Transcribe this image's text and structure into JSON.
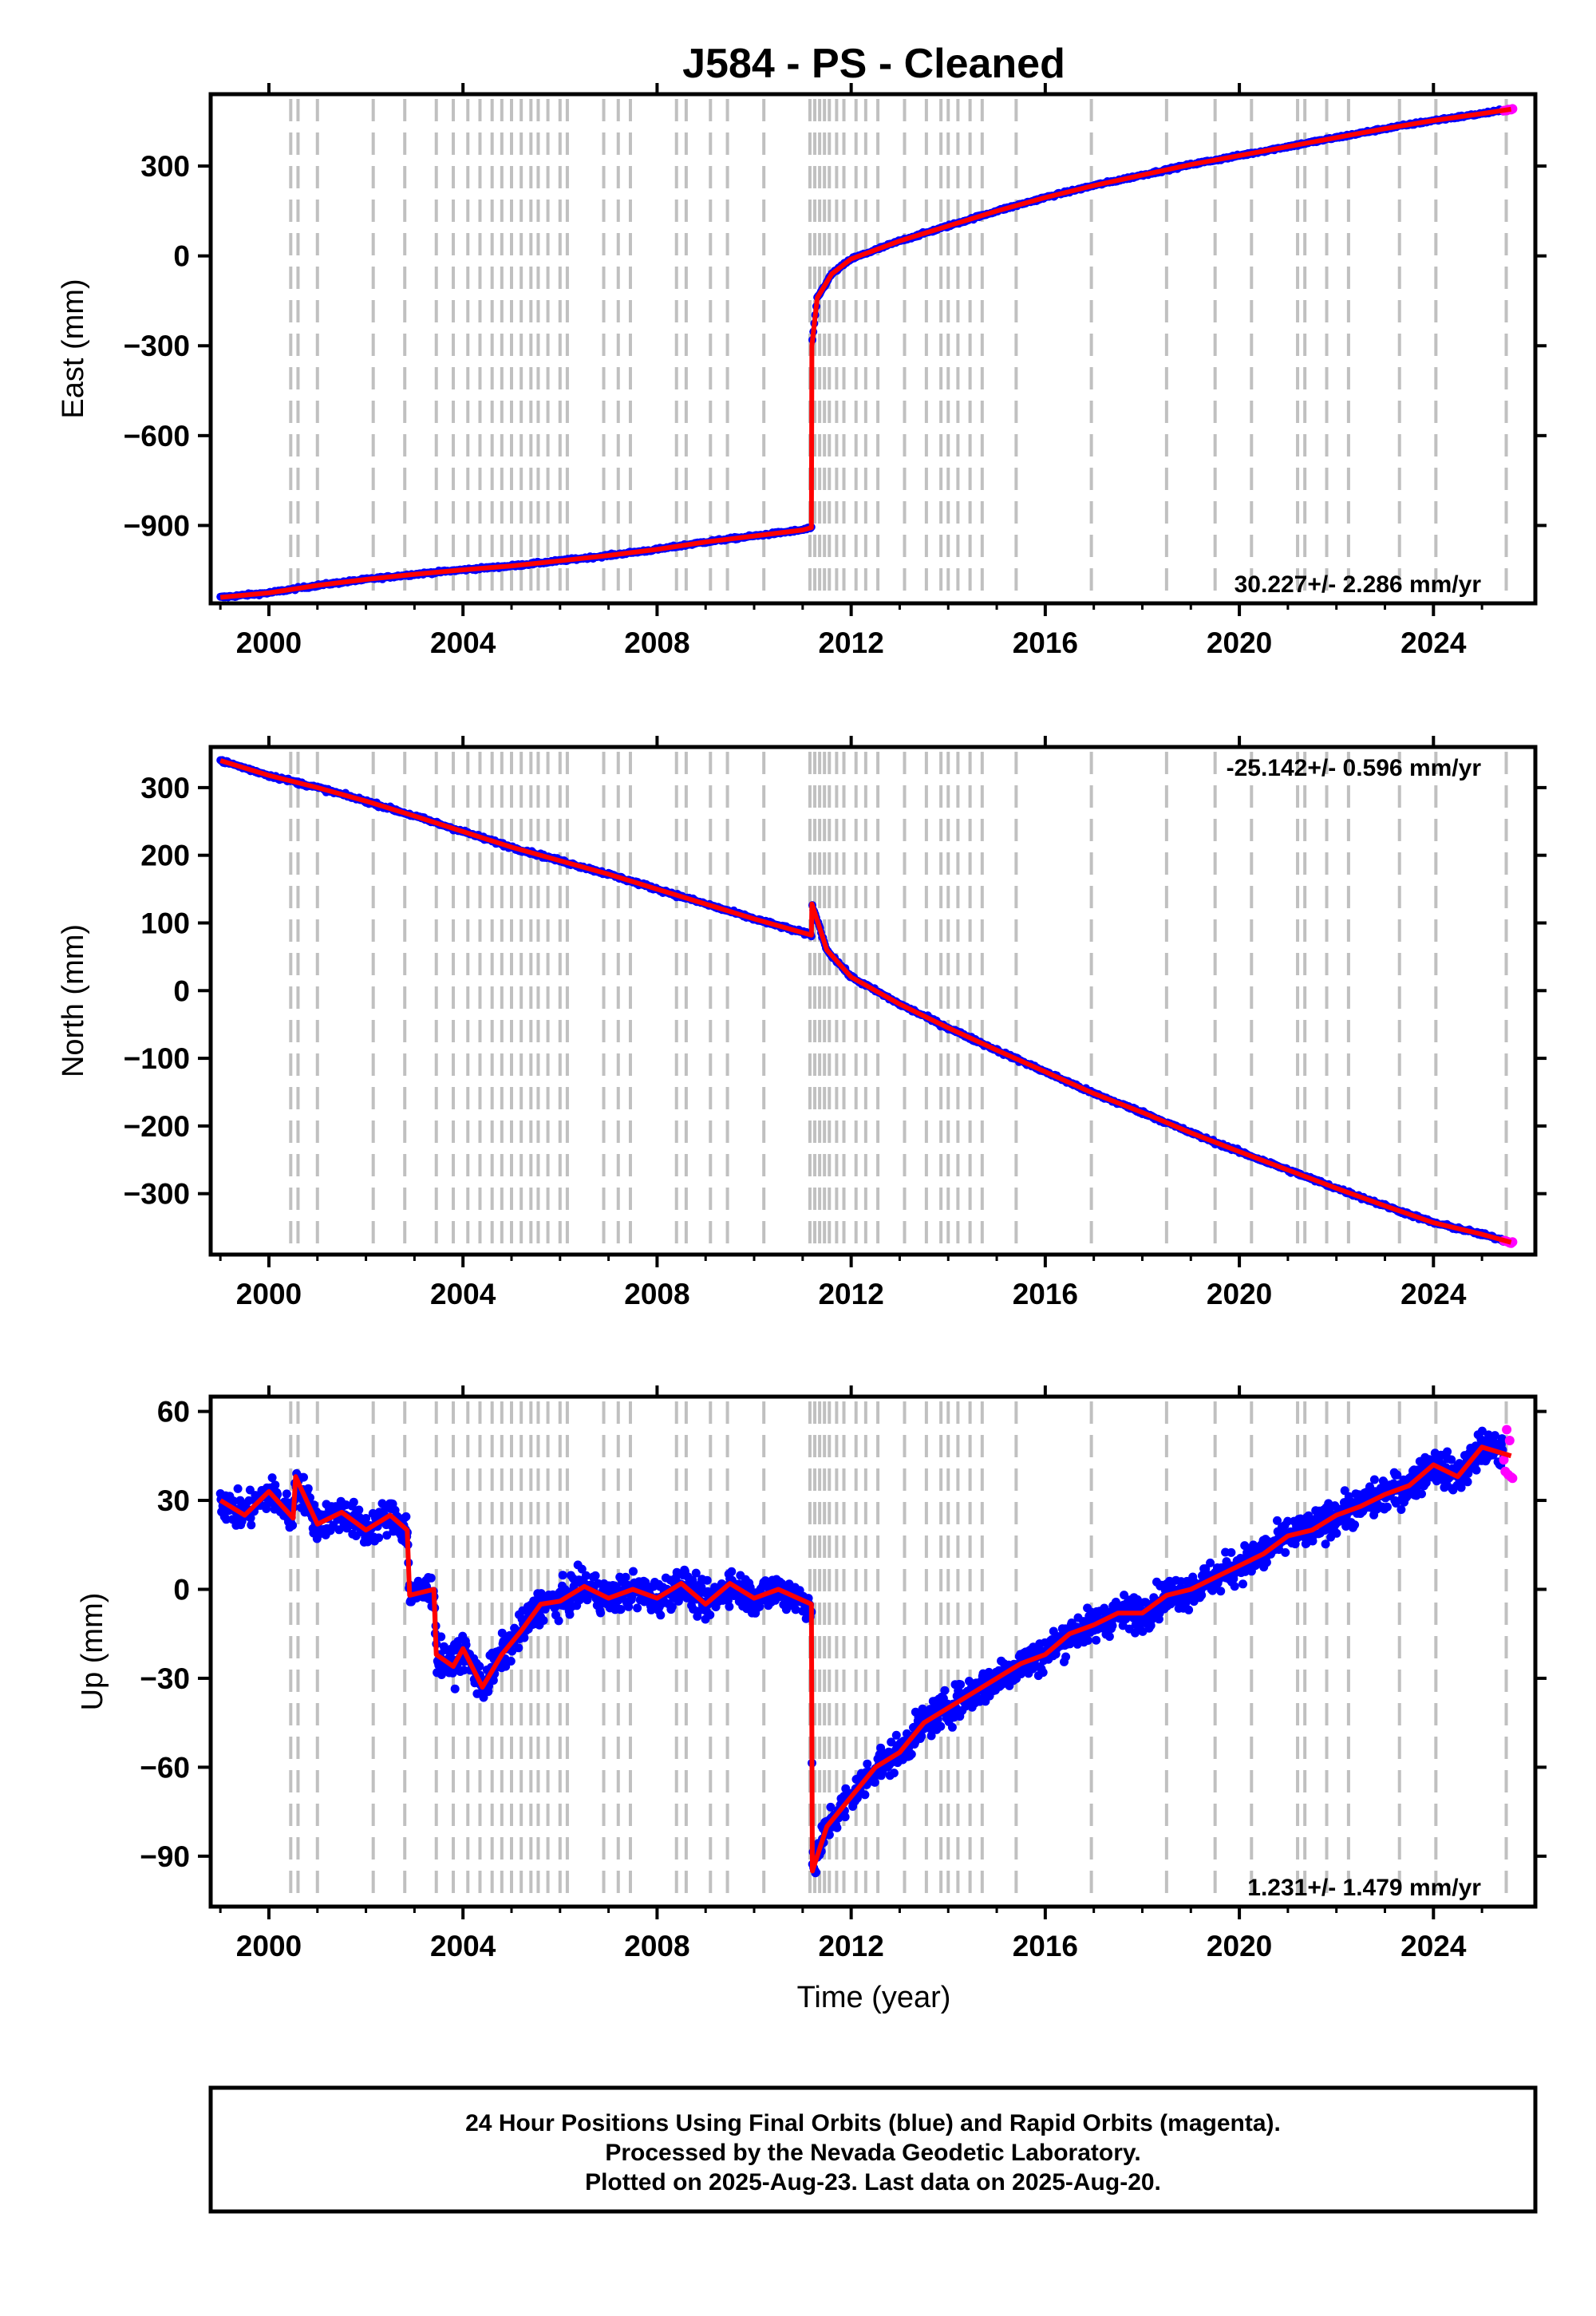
{
  "figure": {
    "title": "J584  - PS - Cleaned",
    "xlabel": "Time (year)",
    "footer_lines": [
      "24 Hour Positions Using Final Orbits (blue) and Rapid Orbits (magenta).",
      "Processed by the Nevada Geodetic Laboratory.",
      "Plotted on 2025-Aug-23. Last data on 2025-Aug-20."
    ],
    "colors": {
      "final_orbits": "#0000ff",
      "rapid_orbits": "#ff00ff",
      "model": "#ff0000",
      "equipment_changes": "#c0c0c0",
      "frame": "#000000"
    }
  },
  "chart_data": [
    {
      "type": "scatter",
      "ylabel": "East (mm)",
      "rate_label": "30.227+/- 2.286 mm/yr",
      "xlim": [
        1998.8,
        2026.1
      ],
      "ylim": [
        -1160,
        540
      ],
      "xticks": [
        2000,
        2004,
        2008,
        2012,
        2016,
        2020,
        2024
      ],
      "yticks": [
        -900,
        -600,
        -300,
        0,
        300
      ],
      "xtick_labels": [
        "2000",
        "2004",
        "2008",
        "2012",
        "2016",
        "2020",
        "2024"
      ],
      "ytick_labels": [
        "−900",
        "−600",
        "−300",
        "0",
        "300"
      ],
      "series": [
        {
          "x": [
            1999.0,
            2000.0,
            2001.0,
            2002.0,
            2003.0,
            2004.0,
            2005.0,
            2006.0,
            2007.0,
            2008.0,
            2009.0,
            2010.0,
            2011.0,
            2011.18,
            2011.19,
            2011.3,
            2011.6,
            2012.0,
            2013.0,
            2014.0,
            2015.0,
            2016.0,
            2017.0,
            2018.0,
            2019.0,
            2020.0,
            2021.0,
            2022.0,
            2023.0,
            2024.0,
            2025.0,
            2025.6
          ],
          "y": [
            -1140,
            -1125,
            -1100,
            -1080,
            -1063,
            -1048,
            -1035,
            -1018,
            -1000,
            -980,
            -955,
            -935,
            -915,
            -907,
            -300,
            -140,
            -60,
            -10,
            50,
            100,
            150,
            195,
            235,
            270,
            305,
            335,
            365,
            395,
            425,
            452,
            475,
            490
          ]
        }
      ]
    },
    {
      "type": "scatter",
      "ylabel": "North (mm)",
      "rate_label": "-25.142+/- 0.596 mm/yr",
      "xlim": [
        1998.8,
        2026.1
      ],
      "ylim": [
        -390,
        360
      ],
      "xticks": [
        2000,
        2004,
        2008,
        2012,
        2016,
        2020,
        2024
      ],
      "yticks": [
        -300,
        -200,
        -100,
        0,
        100,
        200,
        300
      ],
      "xtick_labels": [
        "2000",
        "2004",
        "2008",
        "2012",
        "2016",
        "2020",
        "2024"
      ],
      "ytick_labels": [
        "−300",
        "−200",
        "−100",
        "0",
        "100",
        "200",
        "300"
      ],
      "series": [
        {
          "x": [
            1999.0,
            2000.0,
            2001.0,
            2002.0,
            2003.0,
            2004.0,
            2005.0,
            2006.0,
            2007.0,
            2008.0,
            2009.0,
            2010.0,
            2011.18,
            2011.19,
            2011.5,
            2012.0,
            2013.0,
            2014.0,
            2015.0,
            2016.0,
            2017.0,
            2018.0,
            2019.0,
            2020.0,
            2021.0,
            2022.0,
            2023.0,
            2024.0,
            2025.0,
            2025.6
          ],
          "y": [
            340,
            318,
            300,
            280,
            258,
            235,
            212,
            192,
            172,
            150,
            128,
            106,
            82,
            128,
            60,
            20,
            -20,
            -55,
            -88,
            -120,
            -152,
            -180,
            -210,
            -238,
            -265,
            -292,
            -318,
            -343,
            -360,
            -372
          ]
        }
      ]
    },
    {
      "type": "scatter",
      "ylabel": "Up (mm)",
      "rate_label": "1.231+/- 1.479 mm/yr",
      "xlim": [
        1998.8,
        2026.1
      ],
      "ylim": [
        -107,
        65
      ],
      "xticks": [
        2000,
        2004,
        2008,
        2012,
        2016,
        2020,
        2024
      ],
      "yticks": [
        -90,
        -60,
        -30,
        0,
        30,
        60
      ],
      "xtick_labels": [
        "2000",
        "2004",
        "2008",
        "2012",
        "2016",
        "2020",
        "2024"
      ],
      "ytick_labels": [
        "−90",
        "−60",
        "−30",
        "0",
        "30",
        "60"
      ],
      "series": [
        {
          "x": [
            1999.0,
            1999.5,
            2000.0,
            2000.5,
            2000.55,
            2001.0,
            2001.5,
            2002.0,
            2002.5,
            2002.85,
            2002.9,
            2003.4,
            2003.45,
            2003.8,
            2004.0,
            2004.4,
            2004.8,
            2005.2,
            2005.6,
            2006.0,
            2006.5,
            2007.0,
            2007.5,
            2008.0,
            2008.5,
            2009.0,
            2009.5,
            2010.0,
            2010.5,
            2011.18,
            2011.2,
            2011.5,
            2012.0,
            2012.5,
            2013.0,
            2013.5,
            2014.0,
            2014.5,
            2015.0,
            2015.5,
            2016.0,
            2016.5,
            2017.0,
            2017.5,
            2018.0,
            2018.5,
            2019.0,
            2019.5,
            2020.0,
            2020.5,
            2021.0,
            2021.5,
            2022.0,
            2022.5,
            2023.0,
            2023.5,
            2024.0,
            2024.5,
            2025.0,
            2025.6
          ],
          "y": [
            30,
            25,
            33,
            24,
            38,
            22,
            26,
            20,
            25,
            20,
            -2,
            0,
            -22,
            -26,
            -20,
            -33,
            -22,
            -14,
            -5,
            -4,
            1,
            -3,
            0,
            -3,
            2,
            -5,
            2,
            -3,
            0,
            -5,
            -95,
            -80,
            -70,
            -60,
            -55,
            -45,
            -40,
            -35,
            -30,
            -25,
            -22,
            -15,
            -12,
            -8,
            -8,
            -2,
            0,
            4,
            8,
            12,
            18,
            20,
            25,
            28,
            32,
            35,
            42,
            38,
            48,
            45
          ]
        }
      ]
    }
  ]
}
